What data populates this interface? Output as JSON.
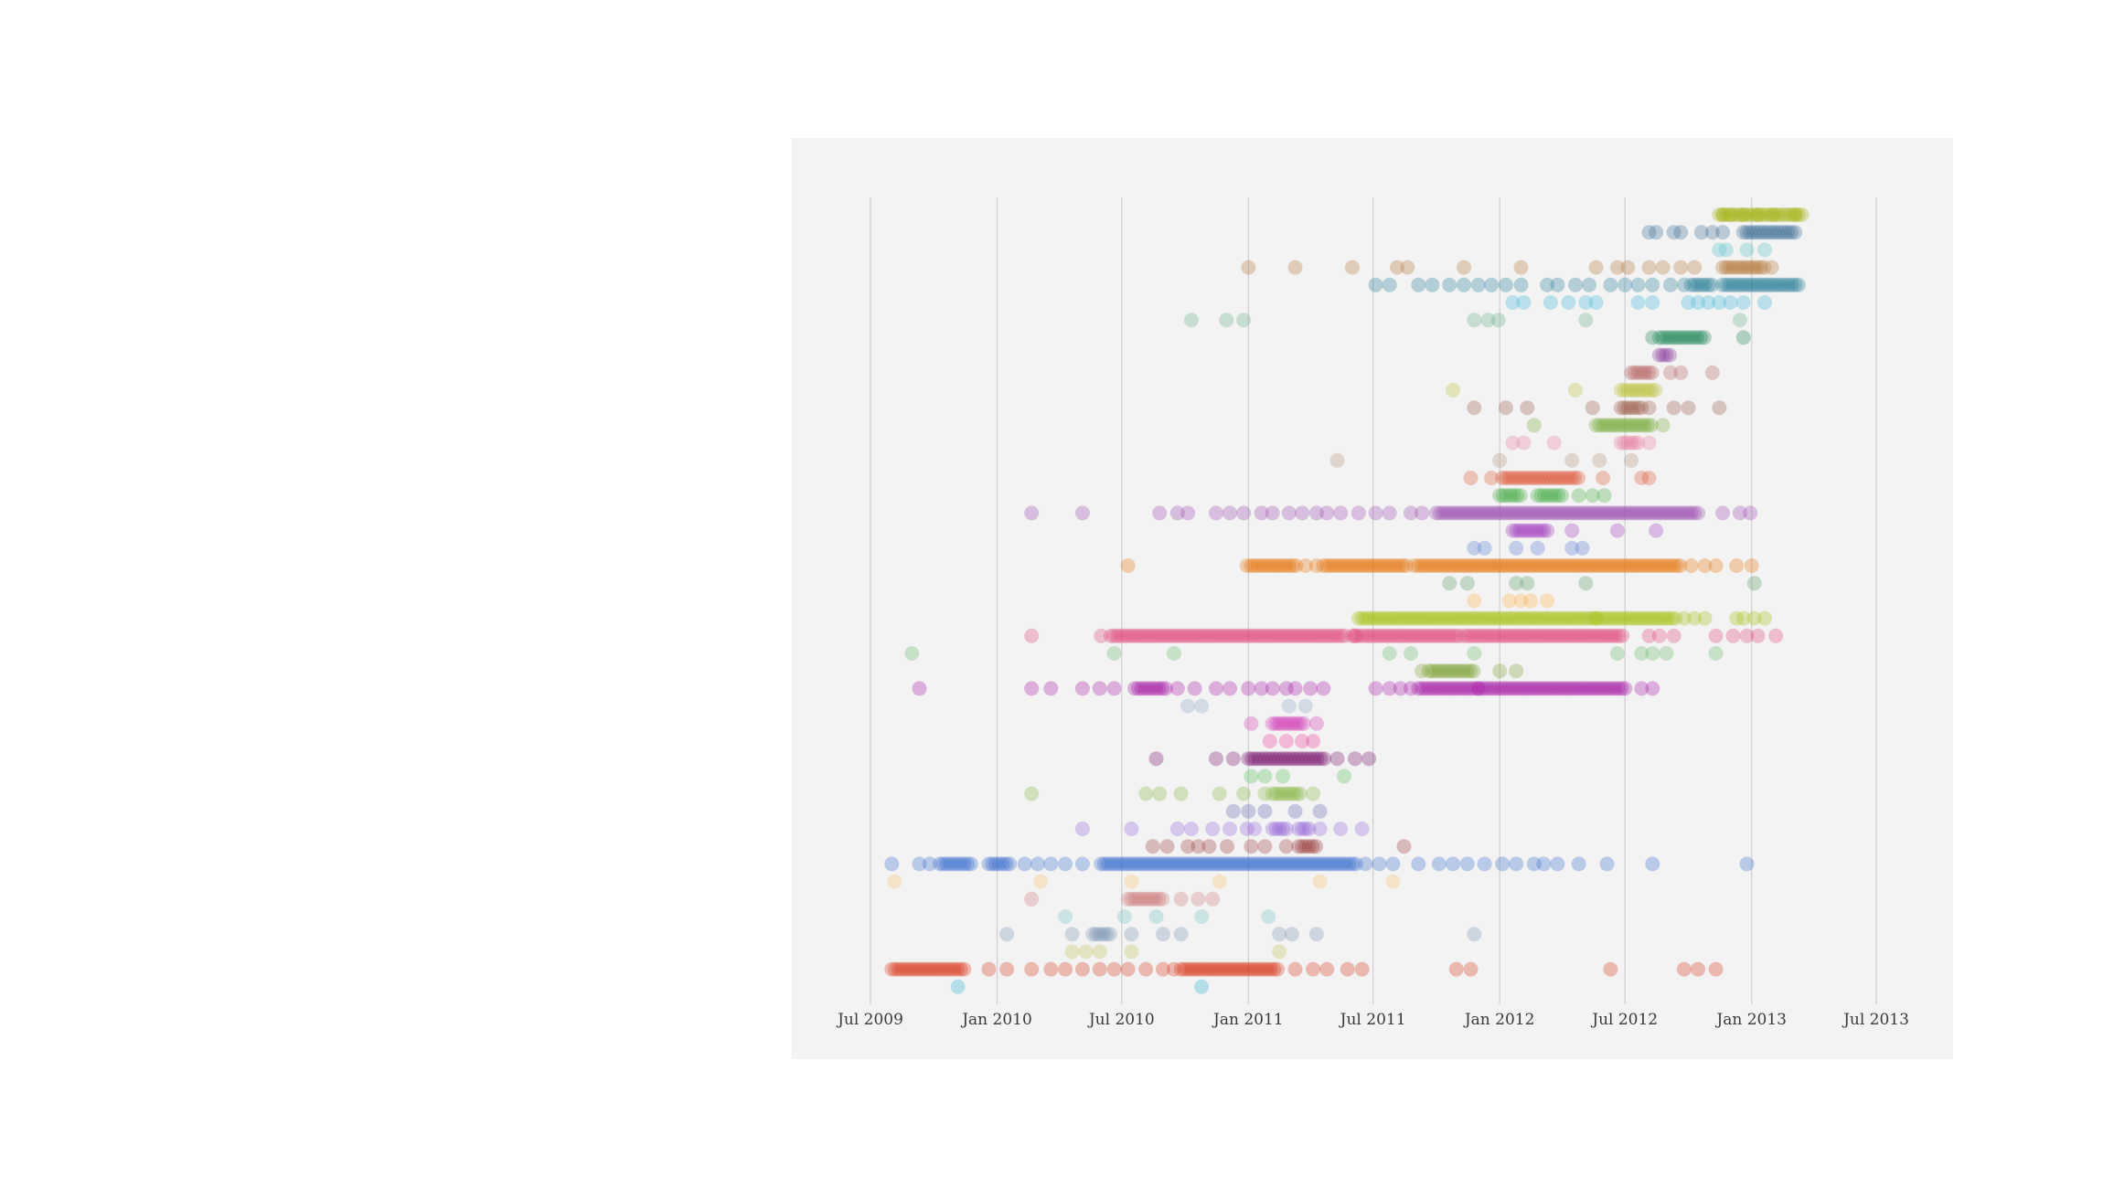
{
  "chart_data": {
    "type": "scatter",
    "title": "",
    "xlabel": "",
    "ylabel": "",
    "x_axis": "date",
    "xlim": [
      "2009-06-01",
      "2013-08-15"
    ],
    "x_ticks": [
      {
        "date": "2009-07-01",
        "label": "Jul 2009"
      },
      {
        "date": "2010-01-01",
        "label": "Jan 2010"
      },
      {
        "date": "2010-07-01",
        "label": "Jul 2010"
      },
      {
        "date": "2011-01-01",
        "label": "Jan 2011"
      },
      {
        "date": "2011-07-01",
        "label": "Jul 2011"
      },
      {
        "date": "2012-01-01",
        "label": "Jan 2012"
      },
      {
        "date": "2012-07-01",
        "label": "Jul 2012"
      },
      {
        "date": "2013-01-01",
        "label": "Jan 2013"
      },
      {
        "date": "2013-07-01",
        "label": "Jul 2013"
      }
    ],
    "grid": "vertical",
    "legend": "none",
    "rows": [
      {
        "color": "#a8b51c",
        "dense": [
          [
            "2012-11-15",
            "2013-03-15"
          ]
        ],
        "points": [
          "2012-11-20",
          "2012-12-01",
          "2012-12-20",
          "2013-01-10",
          "2013-02-01",
          "2013-03-05"
        ]
      },
      {
        "color": "#3e6f96",
        "dense": [
          [
            "2012-12-20",
            "2013-03-05"
          ]
        ],
        "points": [
          "2012-08-05",
          "2012-08-15",
          "2012-09-10",
          "2012-09-20",
          "2012-10-20",
          "2012-11-05",
          "2012-11-20"
        ]
      },
      {
        "color": "#5bc0c8",
        "dense": [],
        "points": [
          "2012-11-15",
          "2012-11-25",
          "2012-12-25",
          "2013-01-20"
        ]
      },
      {
        "color": "#b4783a",
        "dense": [
          [
            "2012-11-20",
            "2013-01-20"
          ]
        ],
        "points": [
          "2011-01-01",
          "2011-03-10",
          "2011-06-01",
          "2011-08-05",
          "2011-08-20",
          "2011-11-10",
          "2012-02-01",
          "2012-05-20",
          "2012-06-20",
          "2012-07-05",
          "2012-08-05",
          "2012-08-25",
          "2012-09-20",
          "2012-10-10",
          "2013-01-30"
        ]
      },
      {
        "color": "#2c7f98",
        "dense": [
          [
            "2012-10-05",
            "2012-11-05"
          ],
          [
            "2012-11-20",
            "2013-03-10"
          ]
        ],
        "points": [
          "2011-07-05",
          "2011-07-25",
          "2011-09-05",
          "2011-09-25",
          "2011-10-20",
          "2011-11-10",
          "2011-12-01",
          "2011-12-20",
          "2012-01-10",
          "2012-02-01",
          "2012-03-10",
          "2012-03-25",
          "2012-04-20",
          "2012-05-10",
          "2012-06-10",
          "2012-07-01",
          "2012-07-20",
          "2012-08-10",
          "2012-09-05",
          "2012-09-25"
        ]
      },
      {
        "color": "#3fb6d6",
        "dense": [],
        "points": [
          "2012-01-20",
          "2012-02-05",
          "2012-03-15",
          "2012-04-10",
          "2012-05-05",
          "2012-05-20",
          "2012-07-20",
          "2012-08-10",
          "2012-10-01",
          "2012-10-15",
          "2012-10-30",
          "2012-11-15",
          "2012-12-01",
          "2012-12-20",
          "2013-01-20"
        ]
      },
      {
        "color": "#6aaf8d",
        "dense": [],
        "points": [
          "2010-10-10",
          "2010-11-30",
          "2010-12-25",
          "2011-11-25",
          "2011-12-15",
          "2011-12-30",
          "2012-05-05",
          "2012-12-15"
        ]
      },
      {
        "color": "#1e8558",
        "dense": [
          [
            "2012-08-20",
            "2012-10-25"
          ]
        ],
        "points": [
          "2012-08-10",
          "2012-12-20"
        ]
      },
      {
        "color": "#8d3f9b",
        "dense": [
          [
            "2012-08-20",
            "2012-09-05"
          ]
        ],
        "points": []
      },
      {
        "color": "#b86262",
        "dense": [
          [
            "2012-07-10",
            "2012-08-10"
          ]
        ],
        "points": [
          "2012-09-05",
          "2012-09-20",
          "2012-11-05"
        ]
      },
      {
        "color": "#bfc13e",
        "dense": [
          [
            "2012-06-25",
            "2012-08-15"
          ]
        ],
        "points": [
          "2011-10-25",
          "2012-04-20"
        ]
      },
      {
        "color": "#9b5e4c",
        "dense": [
          [
            "2012-06-25",
            "2012-07-25"
          ]
        ],
        "points": [
          "2011-11-25",
          "2012-01-10",
          "2012-02-10",
          "2012-05-15",
          "2012-08-05",
          "2012-09-10",
          "2012-10-01",
          "2012-11-15"
        ]
      },
      {
        "color": "#7aac3c",
        "dense": [
          [
            "2012-05-20",
            "2012-08-10"
          ]
        ],
        "points": [
          "2012-02-20",
          "2012-08-25"
        ]
      },
      {
        "color": "#e57fa6",
        "dense": [
          [
            "2012-06-25",
            "2012-07-20"
          ]
        ],
        "points": [
          "2012-01-20",
          "2012-02-05",
          "2012-03-20",
          "2012-08-05"
        ]
      },
      {
        "color": "#b8957a",
        "dense": [],
        "points": [
          "2011-05-10",
          "2012-01-01",
          "2012-04-15",
          "2012-05-25",
          "2012-07-10"
        ]
      },
      {
        "color": "#dc5638",
        "dense": [
          [
            "2012-01-05",
            "2012-04-25"
          ]
        ],
        "points": [
          "2011-11-20",
          "2011-12-20",
          "2012-05-30",
          "2012-07-25",
          "2012-08-05"
        ]
      },
      {
        "color": "#4cae4c",
        "dense": [
          [
            "2012-01-01",
            "2012-02-01"
          ],
          [
            "2012-02-25",
            "2012-04-01"
          ]
        ],
        "points": [
          "2012-04-25",
          "2012-05-15",
          "2012-06-01"
        ]
      },
      {
        "color": "#9b4fb0",
        "dense": [
          [
            "2011-10-01",
            "2012-10-15"
          ]
        ],
        "points": [
          "2010-02-20",
          "2010-05-05",
          "2010-08-25",
          "2010-09-20",
          "2010-10-05",
          "2010-11-15",
          "2010-12-05",
          "2010-12-25",
          "2011-01-20",
          "2011-02-05",
          "2011-03-01",
          "2011-03-20",
          "2011-04-10",
          "2011-04-25",
          "2011-05-15",
          "2011-06-10",
          "2011-07-05",
          "2011-07-25",
          "2011-08-25",
          "2011-09-10",
          "2012-11-20",
          "2012-12-15",
          "2012-12-30"
        ]
      },
      {
        "color": "#a23ec1",
        "dense": [
          [
            "2012-01-20",
            "2012-03-10"
          ]
        ],
        "points": [
          "2012-04-15",
          "2012-06-20",
          "2012-08-15"
        ]
      },
      {
        "color": "#5b81d2",
        "dense": [],
        "points": [
          "2011-11-25",
          "2011-12-10",
          "2012-01-25",
          "2012-02-25",
          "2012-04-15",
          "2012-04-30"
        ]
      },
      {
        "color": "#e7770e",
        "dense": [
          [
            "2011-01-05",
            "2011-03-15"
          ],
          [
            "2011-04-20",
            "2011-08-20"
          ],
          [
            "2011-09-05",
            "2012-09-20"
          ]
        ],
        "points": [
          "2010-07-10",
          "2010-12-30",
          "2011-03-25",
          "2011-04-10",
          "2011-08-30",
          "2012-10-05",
          "2012-10-25",
          "2012-11-10",
          "2012-12-10",
          "2013-01-01"
        ]
      },
      {
        "color": "#5c9c66",
        "dense": [],
        "points": [
          "2011-10-20",
          "2011-11-15",
          "2012-01-25",
          "2012-02-10",
          "2012-05-05",
          "2013-01-05"
        ]
      },
      {
        "color": "#ffb04a",
        "dense": [],
        "points": [
          "2011-11-25",
          "2012-01-15",
          "2012-02-01",
          "2012-02-15",
          "2012-03-10"
        ]
      },
      {
        "color": "#a7c01a",
        "dense": [
          [
            "2011-06-10",
            "2012-05-20"
          ],
          [
            "2012-05-20",
            "2012-09-15"
          ]
        ],
        "points": [
          "2012-09-25",
          "2012-10-10",
          "2012-10-25",
          "2012-12-10",
          "2012-12-20",
          "2013-01-05",
          "2013-01-20"
        ]
      },
      {
        "color": "#e04b7c",
        "dense": [
          [
            "2010-06-15",
            "2011-05-25"
          ],
          [
            "2011-06-01",
            "2011-11-05"
          ],
          [
            "2011-11-10",
            "2012-07-01"
          ]
        ],
        "points": [
          "2010-02-20",
          "2010-06-01",
          "2011-06-05",
          "2012-08-05",
          "2012-08-20",
          "2012-09-10",
          "2012-11-10",
          "2012-12-05",
          "2012-12-25",
          "2013-01-10",
          "2013-02-05"
        ]
      },
      {
        "color": "#6db86d",
        "dense": [],
        "points": [
          "2009-08-30",
          "2010-06-20",
          "2010-09-15",
          "2011-07-25",
          "2011-08-25",
          "2011-11-25",
          "2012-06-20",
          "2012-07-25",
          "2012-08-10",
          "2012-08-30",
          "2012-11-10"
        ]
      },
      {
        "color": "#7ca335",
        "dense": [
          [
            "2011-09-20",
            "2011-11-25"
          ]
        ],
        "points": [
          "2011-09-10",
          "2012-01-01",
          "2012-01-25"
        ]
      },
      {
        "color": "#a81ca8",
        "dense": [
          [
            "2010-07-20",
            "2010-09-05"
          ],
          [
            "2011-09-05",
            "2012-07-01"
          ]
        ],
        "points": [
          "2009-09-10",
          "2010-02-20",
          "2010-03-20",
          "2010-05-05",
          "2010-05-30",
          "2010-06-20",
          "2010-09-20",
          "2010-10-15",
          "2010-11-15",
          "2010-12-05",
          "2011-01-01",
          "2011-01-20",
          "2011-02-05",
          "2011-02-25",
          "2011-03-10",
          "2011-04-01",
          "2011-04-20",
          "2011-07-05",
          "2011-07-25",
          "2011-08-10",
          "2011-08-25",
          "2011-12-01",
          "2012-07-25",
          "2012-08-10"
        ]
      },
      {
        "color": "#8da7c8",
        "dense": [],
        "points": [
          "2010-10-05",
          "2010-10-25",
          "2011-03-01",
          "2011-03-25"
        ]
      },
      {
        "color": "#d33fb8",
        "dense": [
          [
            "2011-02-05",
            "2011-03-25"
          ]
        ],
        "points": [
          "2011-01-05",
          "2011-04-10"
        ]
      },
      {
        "color": "#ec3d9d",
        "dense": [],
        "points": [
          "2011-02-01",
          "2011-02-25",
          "2011-03-20",
          "2011-04-05"
        ]
      },
      {
        "color": "#79156f",
        "dense": [
          [
            "2011-01-01",
            "2011-04-25"
          ]
        ],
        "points": [
          "2010-08-20",
          "2010-11-15",
          "2010-12-10",
          "2011-05-10",
          "2011-06-05",
          "2011-06-25"
        ]
      },
      {
        "color": "#56c056",
        "dense": [],
        "points": [
          "2011-01-05",
          "2011-01-25",
          "2011-02-20",
          "2011-05-20"
        ]
      },
      {
        "color": "#8ab848",
        "dense": [
          [
            "2011-02-05",
            "2011-03-20"
          ]
        ],
        "points": [
          "2010-02-20",
          "2010-08-05",
          "2010-08-25",
          "2010-09-25",
          "2010-11-20",
          "2010-12-25",
          "2011-01-25",
          "2011-04-05"
        ]
      },
      {
        "color": "#5f6bb0",
        "dense": [],
        "points": [
          "2010-12-10",
          "2011-01-01",
          "2011-01-25",
          "2011-03-10",
          "2011-04-15"
        ]
      },
      {
        "color": "#9466d9",
        "dense": [
          [
            "2011-02-05",
            "2011-02-25"
          ],
          [
            "2011-03-15",
            "2011-03-30"
          ]
        ],
        "points": [
          "2010-05-05",
          "2010-07-15",
          "2010-09-20",
          "2010-10-10",
          "2010-11-10",
          "2010-12-05",
          "2010-12-30",
          "2011-01-10",
          "2011-04-15",
          "2011-05-15",
          "2011-06-15"
        ]
      },
      {
        "color": "#9c3f3f",
        "dense": [
          [
            "2011-03-15",
            "2011-04-10"
          ]
        ],
        "points": [
          "2010-08-15",
          "2010-09-05",
          "2010-10-05",
          "2010-10-20",
          "2010-11-05",
          "2010-12-01",
          "2011-01-05",
          "2011-01-25",
          "2011-02-25",
          "2011-08-15"
        ]
      },
      {
        "color": "#3e6fd1",
        "dense": [
          [
            "2009-10-10",
            "2009-11-25"
          ],
          [
            "2009-12-20",
            "2010-01-20"
          ],
          [
            "2010-06-01",
            "2010-06-30"
          ],
          [
            "2010-07-01",
            "2011-06-10"
          ]
        ],
        "points": [
          "2009-08-01",
          "2009-09-10",
          "2009-09-25",
          "2010-02-10",
          "2010-03-01",
          "2010-03-20",
          "2010-04-10",
          "2010-05-05",
          "2011-06-20",
          "2011-07-10",
          "2011-07-30",
          "2011-09-05",
          "2011-10-05",
          "2011-10-25",
          "2011-11-15",
          "2011-12-10",
          "2012-01-05",
          "2012-01-25",
          "2012-02-20",
          "2012-03-05",
          "2012-03-25",
          "2012-04-25",
          "2012-06-05",
          "2012-08-10",
          "2012-12-25"
        ]
      },
      {
        "color": "#f6c06c",
        "dense": [],
        "points": [
          "2009-08-05",
          "2010-03-05",
          "2010-07-15",
          "2010-11-20",
          "2011-04-15",
          "2011-07-30"
        ]
      },
      {
        "color": "#cc7c7c",
        "dense": [
          [
            "2010-07-10",
            "2010-08-30"
          ]
        ],
        "points": [
          "2010-02-20",
          "2010-09-25",
          "2010-10-20",
          "2010-11-10"
        ]
      },
      {
        "color": "#73c4c4",
        "dense": [],
        "points": [
          "2010-04-10",
          "2010-07-05",
          "2010-08-20",
          "2010-10-25",
          "2011-01-30"
        ]
      },
      {
        "color": "#7d94b3",
        "dense": [
          [
            "2010-05-20",
            "2010-06-15"
          ]
        ],
        "points": [
          "2010-01-15",
          "2010-04-20",
          "2010-07-15",
          "2010-08-30",
          "2010-09-25",
          "2011-02-15",
          "2011-03-05",
          "2011-04-10",
          "2011-11-25"
        ]
      },
      {
        "color": "#c2c256",
        "dense": [],
        "points": [
          "2010-04-20",
          "2010-05-10",
          "2010-05-30",
          "2010-07-15",
          "2011-02-15"
        ]
      },
      {
        "color": "#db3b1f",
        "dense": [
          [
            "2009-08-01",
            "2009-11-15"
          ],
          [
            "2010-09-25",
            "2011-02-15"
          ]
        ],
        "points": [
          "2009-12-20",
          "2010-01-15",
          "2010-02-20",
          "2010-03-20",
          "2010-04-10",
          "2010-05-05",
          "2010-05-30",
          "2010-06-20",
          "2010-07-10",
          "2010-08-05",
          "2010-08-30",
          "2010-09-15",
          "2011-03-10",
          "2011-04-05",
          "2011-04-25",
          "2011-05-25",
          "2011-06-15",
          "2011-10-30",
          "2011-11-20",
          "2012-06-10",
          "2012-09-25",
          "2012-10-15",
          "2012-11-10"
        ]
      },
      {
        "color": "#33b3cf",
        "dense": [],
        "points": [
          "2009-11-05",
          "2010-10-25"
        ]
      }
    ]
  }
}
